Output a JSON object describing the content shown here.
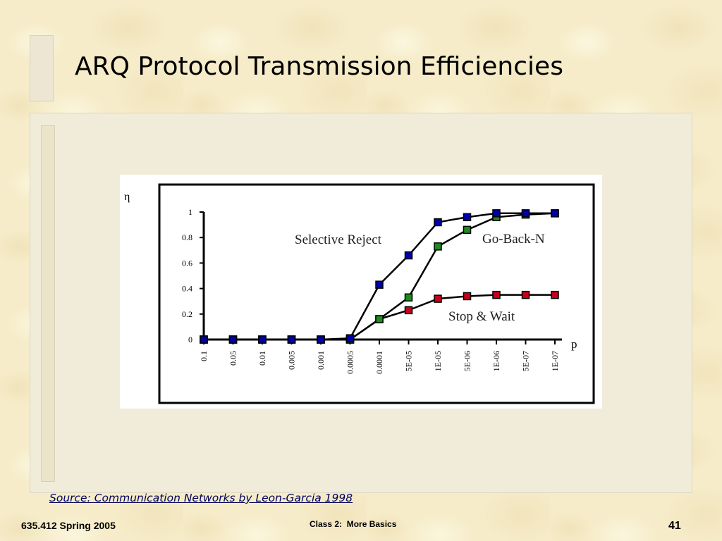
{
  "slide": {
    "title": "ARQ Protocol Transmission Efficiencies",
    "source": "Source: Communication Networks by Leon-Garcia 1998",
    "footer_left": "635.412 Spring 2005",
    "footer_center": "Class 2:  More Basics",
    "page_number": "41"
  },
  "chart_data": {
    "type": "line",
    "ylabel": "η",
    "xlabel": "p",
    "ylim": [
      0,
      1
    ],
    "yticks": [
      "0",
      "0.2",
      "0.4",
      "0.6",
      "0.8",
      "1"
    ],
    "categories": [
      "0.1",
      "0.05",
      "0.01",
      "0.005",
      "0.001",
      "0.0005",
      "0.0001",
      "5E-05",
      "1E-05",
      "5E-06",
      "1E-06",
      "5E-07",
      "1E-07"
    ],
    "series": [
      {
        "name": "Selective Reject",
        "color": "#0000aa",
        "values": [
          0,
          0,
          0,
          0,
          0,
          0.01,
          0.43,
          0.66,
          0.92,
          0.96,
          0.99,
          0.99,
          0.99
        ]
      },
      {
        "name": "Go-Back-N",
        "color": "#1c8c1c",
        "values": [
          0,
          0,
          0,
          0,
          0,
          0,
          0.16,
          0.33,
          0.73,
          0.86,
          0.96,
          0.98,
          0.99
        ]
      },
      {
        "name": "Stop & Wait",
        "color": "#c8001a",
        "values": [
          0,
          0,
          0,
          0,
          0,
          0,
          0.16,
          0.23,
          0.32,
          0.34,
          0.35,
          0.35,
          0.35
        ]
      }
    ],
    "grid": false,
    "legend": "inline labels"
  }
}
